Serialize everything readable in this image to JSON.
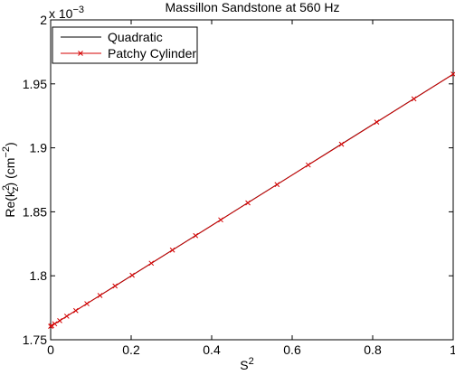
{
  "chart_data": {
    "type": "line",
    "title": "Massillon Sandstone at 560 Hz",
    "xlabel_base": "S",
    "xlabel_sup": "2",
    "ylabel_parts": {
      "pre": "Re(k",
      "sup": "2",
      "sub": "z",
      "mid": ") (cm",
      "unit_sup": "−2",
      "post": ")"
    },
    "y_multiplier": {
      "prefix": "x 10",
      "exponent": "−3"
    },
    "xlim": [
      0,
      1
    ],
    "ylim": [
      1.75,
      2.0
    ],
    "x_ticks": [
      "0",
      "0.2",
      "0.4",
      "0.6",
      "0.8",
      "1"
    ],
    "x_tick_values": [
      0,
      0.2,
      0.4,
      0.6,
      0.8,
      1.0
    ],
    "y_ticks": [
      "1.75",
      "1.8",
      "1.85",
      "1.9",
      "1.95",
      "2"
    ],
    "y_tick_values": [
      1.75,
      1.8,
      1.85,
      1.9,
      1.95,
      2.0
    ],
    "grid": false,
    "legend_position": "top-left",
    "series": [
      {
        "name": "Quadratic",
        "color": "#000000",
        "marker": "none",
        "x": [
          0,
          0.1,
          0.2,
          0.3,
          0.4,
          0.5,
          0.6,
          0.7,
          0.8,
          0.9,
          1.0
        ],
        "y": [
          1.7605,
          1.7802,
          1.7999,
          1.8196,
          1.8393,
          1.8591,
          1.8788,
          1.8985,
          1.9182,
          1.9379,
          1.9576
        ]
      },
      {
        "name": "Patchy Cylinder",
        "color": "#d40000",
        "marker": "x",
        "x": [
          0,
          0.0025,
          0.01,
          0.0225,
          0.04,
          0.0625,
          0.09,
          0.1225,
          0.16,
          0.2025,
          0.25,
          0.3025,
          0.36,
          0.4225,
          0.49,
          0.5625,
          0.64,
          0.7225,
          0.81,
          0.9025,
          1.0
        ],
        "y": [
          1.7605,
          1.761,
          1.7625,
          1.7649,
          1.7684,
          1.7728,
          1.7782,
          1.7846,
          1.792,
          1.8004,
          1.8098,
          1.8201,
          1.8314,
          1.8437,
          1.857,
          1.8713,
          1.8866,
          1.9028,
          1.9201,
          1.9383,
          1.9576
        ]
      }
    ]
  }
}
